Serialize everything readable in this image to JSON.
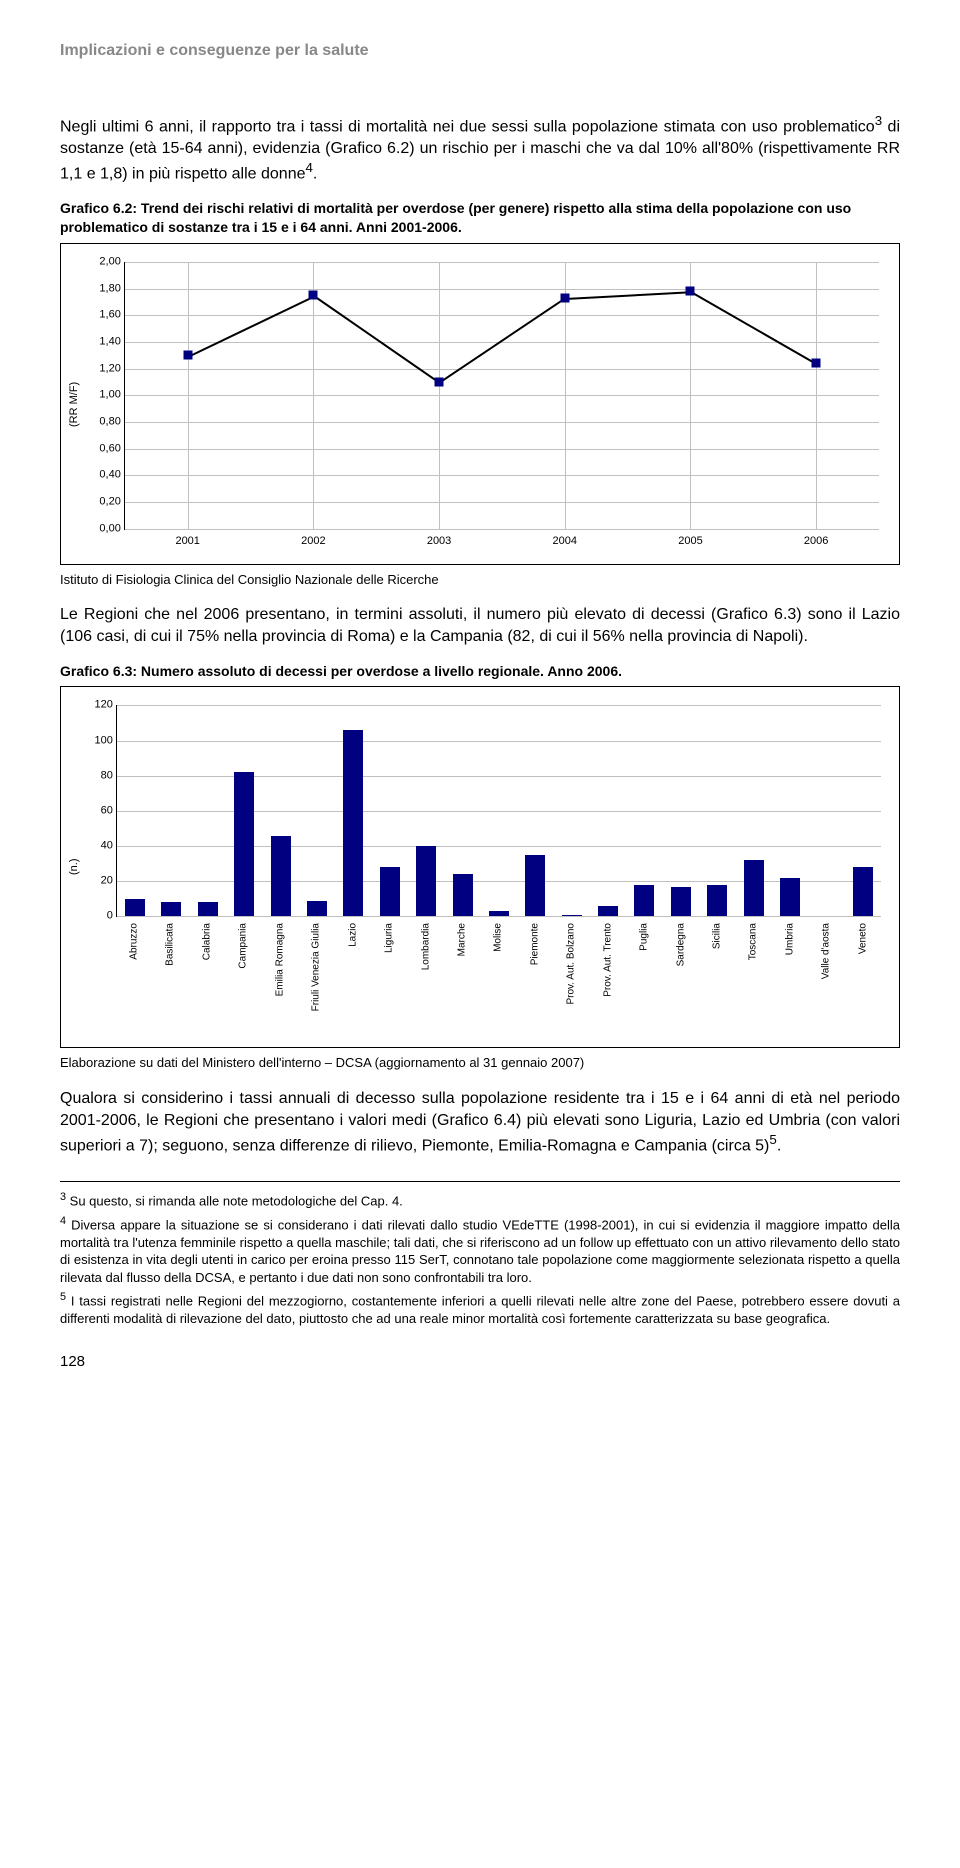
{
  "header": "Implicazioni e conseguenze per la salute",
  "para1_pre": "Negli ultimi 6 anni, il rapporto tra i tassi di mortalità nei due sessi sulla popolazione stimata con uso problematico",
  "para1_sup1": "3",
  "para1_mid": " di sostanze (età 15-64 anni), evidenzia (Grafico 6.2) un rischio per i maschi che va dal 10% all'80% (rispettivamente RR 1,1 e 1,8) in più rispetto alle donne",
  "para1_sup2": "4",
  "para1_end": ".",
  "caption1": "Grafico 6.2: Trend dei rischi relativi di mortalità per overdose (per genere) rispetto alla stima della popolazione con uso problematico di sostanze tra i 15 e i 64 anni. Anni 2001-2006.",
  "chart1": {
    "ylabel": "(RR M/F)",
    "ymax": 2.0,
    "ymin": 0.0,
    "ystep": 0.2,
    "yticks": [
      "2,00",
      "1,80",
      "1,60",
      "1,40",
      "1,20",
      "1,00",
      "0,80",
      "0,60",
      "0,40",
      "0,20",
      "0,00"
    ],
    "categories": [
      "2001",
      "2002",
      "2003",
      "2004",
      "2005",
      "2006"
    ],
    "values": [
      1.3,
      1.75,
      1.1,
      1.73,
      1.78,
      1.24
    ],
    "marker_color": "#000080"
  },
  "source1": "Istituto di Fisiologia Clinica del Consiglio Nazionale delle Ricerche",
  "para2": "Le Regioni che nel 2006 presentano, in termini assoluti, il numero più elevato di decessi (Grafico 6.3) sono il Lazio (106 casi, di cui il 75% nella provincia di Roma) e la Campania (82, di cui il 56% nella provincia di Napoli).",
  "caption2": "Grafico 6.3: Numero assoluto di decessi per overdose a livello regionale. Anno 2006.",
  "chart2": {
    "ylabel": "(n.)",
    "ymax": 120,
    "ymin": 0,
    "ystep": 20,
    "yticks": [
      "120",
      "100",
      "80",
      "60",
      "40",
      "20",
      "0"
    ],
    "categories": [
      "Abruzzo",
      "Basilicata",
      "Calabria",
      "Campania",
      "Emilia Romagna",
      "Friuli Venezia Giulia",
      "Lazio",
      "Liguria",
      "Lombardia",
      "Marche",
      "Molise",
      "Piemonte",
      "Prov. Aut. Bolzano",
      "Prov. Aut. Trento",
      "Puglia",
      "Sardegna",
      "Sicilia",
      "Toscana",
      "Umbria",
      "Valle d'aosta",
      "Veneto"
    ],
    "values": [
      10,
      8,
      8,
      82,
      46,
      9,
      106,
      28,
      40,
      24,
      3,
      35,
      1,
      6,
      18,
      17,
      18,
      32,
      22,
      0,
      28
    ],
    "bar_color": "#000080"
  },
  "source2": "Elaborazione su dati del Ministero dell'interno – DCSA (aggiornamento al 31 gennaio 2007)",
  "para3_pre": "Qualora si considerino i tassi annuali di decesso sulla popolazione residente tra i 15 e i 64 anni di età nel periodo 2001-2006, le Regioni che presentano i valori medi (Grafico 6.4) più elevati sono Liguria, Lazio ed Umbria (con valori superiori a 7); seguono, senza differenze di rilievo, Piemonte, Emilia-Romagna e Campania (circa 5)",
  "para3_sup": "5",
  "para3_end": ".",
  "fn3_sup": "3",
  "fn3": " Su questo, si rimanda alle note metodologiche del Cap. 4.",
  "fn4_sup": "4",
  "fn4": " Diversa appare la situazione se si considerano i dati rilevati dallo studio VEdeTTE (1998-2001), in cui si evidenzia il maggiore impatto della mortalità tra l'utenza femminile rispetto a quella maschile; tali dati, che si riferiscono ad un follow up effettuato con un attivo rilevamento dello stato di esistenza in vita degli utenti in carico per eroina presso 115 SerT, connotano tale popolazione come maggiormente selezionata rispetto a quella rilevata dal flusso della DCSA, e pertanto i due dati non sono confrontabili tra loro.",
  "fn5_sup": "5",
  "fn5": " I tassi registrati nelle Regioni del mezzogiorno, costantemente inferiori a quelli rilevati nelle altre zone del Paese, potrebbero essere dovuti a differenti modalità di rilevazione del dato, piuttosto che ad una reale minor mortalità così fortemente caratterizzata su base geografica.",
  "pagenum": "128"
}
